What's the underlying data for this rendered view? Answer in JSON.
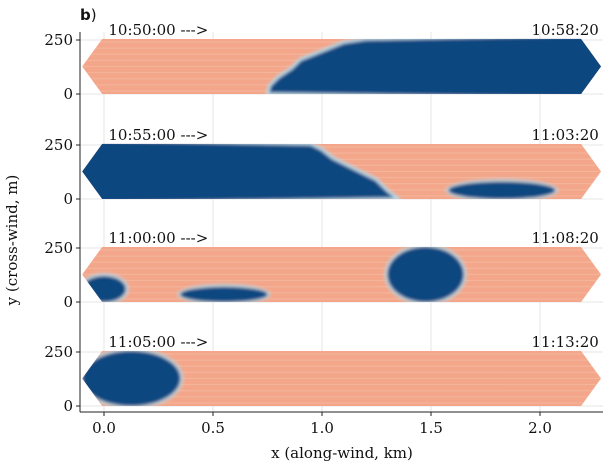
{
  "panel_label": {
    "letter": "b",
    "paren": ")"
  },
  "colors": {
    "warm": "#f3a68a",
    "warm_light": "#f7c6ad",
    "cool": "#0e4680",
    "cool_mid": "#2d6fad",
    "cool_light": "#b9d9ea",
    "grid": "#e4e4e4",
    "axis": "#222222"
  },
  "chart_data": {
    "type": "heatmap",
    "xlabel": "x (along-wind, km)",
    "ylabel": "y (cross-wind, m)",
    "xlim": [
      -0.1,
      2.3
    ],
    "ylim": [
      0,
      290
    ],
    "xticks": [
      0.0,
      0.5,
      1.0,
      1.5,
      2.0
    ],
    "xtick_labels": [
      "0.0",
      "0.5",
      "1.0",
      "1.5",
      "2.0"
    ],
    "yticks": [
      0,
      250
    ],
    "ytick_labels": [
      "0",
      "250"
    ],
    "grid": true,
    "panels": [
      {
        "start_label": "10:50:00 --->",
        "end_label": "10:58:20",
        "pattern": "warm upwind of x ≈ 0.75–1.2 km, cool downwind",
        "cool_boundary_x": [
          [
            0,
            0.75
          ],
          [
            40,
            0.76
          ],
          [
            80,
            0.8
          ],
          [
            120,
            0.86
          ],
          [
            160,
            0.9
          ],
          [
            200,
            1.0
          ],
          [
            240,
            1.1
          ],
          [
            255,
            1.2
          ]
        ],
        "cool_blobs": []
      },
      {
        "start_label": "10:55:00 --->",
        "end_label": "11:03:20",
        "pattern": "cool upwind of x ≈ 1.0–1.4 km, warm downwind with cool cells near x ≈ 1.8 km",
        "cool_boundary_x": [
          [
            0,
            1.35
          ],
          [
            40,
            1.3
          ],
          [
            90,
            1.25
          ],
          [
            140,
            1.15
          ],
          [
            190,
            1.05
          ],
          [
            230,
            1.0
          ],
          [
            255,
            0.95
          ]
        ],
        "cool_blobs": [
          {
            "x": [
              1.58,
              2.07
            ],
            "y": [
              0,
              80
            ]
          }
        ]
      },
      {
        "start_label": "11:00:00 --->",
        "end_label": "11:08:20",
        "pattern": "warm background with cool regions near x ≈ 0.4–0.7 km and x ≈ 1.4–1.6 km",
        "cool_boundary_x": [],
        "cool_blobs": [
          {
            "x": [
              -0.1,
              0.1
            ],
            "y": [
              0,
              120
            ]
          },
          {
            "x": [
              0.35,
              0.75
            ],
            "y": [
              0,
              70
            ]
          },
          {
            "x": [
              1.3,
              1.65
            ],
            "y": [
              0,
              255
            ]
          }
        ]
      },
      {
        "start_label": "11:05:00 --->",
        "end_label": "11:13:20",
        "pattern": "mostly warm with cool region near x ≈ -0.1–0.4 km",
        "cool_boundary_x": [],
        "cool_blobs": [
          {
            "x": [
              -0.1,
              0.35
            ],
            "y": [
              0,
              255
            ]
          }
        ]
      }
    ]
  }
}
